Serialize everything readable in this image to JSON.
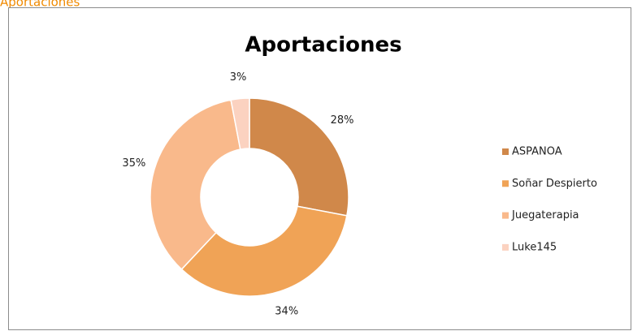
{
  "sheet_label": "Aportaciones",
  "chart_data": {
    "type": "donut",
    "title": "Aportaciones",
    "categories": [
      "ASPANOA",
      "Soñar Despierto",
      "Juegaterapia",
      "Luke145"
    ],
    "values": [
      28,
      34,
      35,
      3
    ],
    "value_labels": [
      "28%",
      "34%",
      "35%",
      "3%"
    ],
    "colors": [
      "#d0884a",
      "#f0a356",
      "#f9b98b",
      "#fbd2c0"
    ],
    "legend": "right"
  }
}
